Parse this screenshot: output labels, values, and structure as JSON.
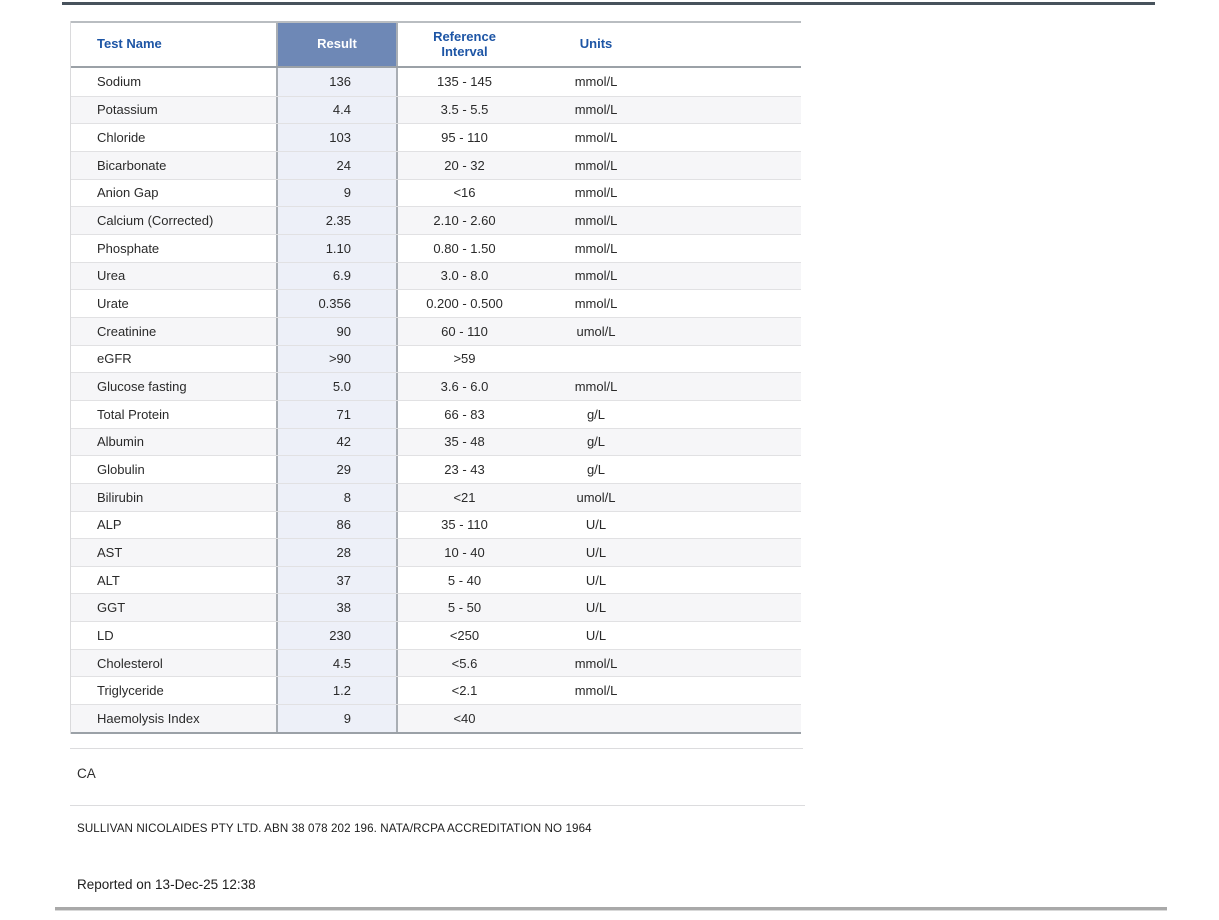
{
  "colors": {
    "header_text": "#1d55a5",
    "result_header_bg": "#6e88b6",
    "result_cell_bg": "#edf0f8",
    "row_stripe": "#f6f6f8",
    "top_rule": "#47525c",
    "bottom_rule": "#a9a9a9"
  },
  "table": {
    "headers": {
      "test_name": "Test Name",
      "result": "Result",
      "reference_interval": "Reference\nInterval",
      "units": "Units"
    },
    "rows": [
      {
        "name": "Sodium",
        "result": "136",
        "reference": "135 - 145",
        "units": "mmol/L"
      },
      {
        "name": "Potassium",
        "result": "4.4",
        "reference": "3.5 - 5.5",
        "units": "mmol/L"
      },
      {
        "name": "Chloride",
        "result": "103",
        "reference": "95 - 110",
        "units": "mmol/L"
      },
      {
        "name": "Bicarbonate",
        "result": "24",
        "reference": "20 - 32",
        "units": "mmol/L"
      },
      {
        "name": "Anion Gap",
        "result": "9",
        "reference": "<16",
        "units": "mmol/L"
      },
      {
        "name": "Calcium (Corrected)",
        "result": "2.35",
        "reference": "2.10 - 2.60",
        "units": "mmol/L"
      },
      {
        "name": "Phosphate",
        "result": "1.10",
        "reference": "0.80 - 1.50",
        "units": "mmol/L"
      },
      {
        "name": "Urea",
        "result": "6.9",
        "reference": "3.0 - 8.0",
        "units": "mmol/L"
      },
      {
        "name": "Urate",
        "result": "0.356",
        "reference": "0.200 - 0.500",
        "units": "mmol/L"
      },
      {
        "name": "Creatinine",
        "result": "90",
        "reference": "60 - 110",
        "units": "umol/L"
      },
      {
        "name": "eGFR",
        "result": ">90",
        "reference": ">59",
        "units": ""
      },
      {
        "name": "Glucose fasting",
        "result": "5.0",
        "reference": "3.6 - 6.0",
        "units": "mmol/L"
      },
      {
        "name": "Total Protein",
        "result": "71",
        "reference": "66 - 83",
        "units": "g/L"
      },
      {
        "name": "Albumin",
        "result": "42",
        "reference": "35 - 48",
        "units": "g/L"
      },
      {
        "name": "Globulin",
        "result": "29",
        "reference": "23 - 43",
        "units": "g/L"
      },
      {
        "name": "Bilirubin",
        "result": "8",
        "reference": "<21",
        "units": "umol/L"
      },
      {
        "name": "ALP",
        "result": "86",
        "reference": "35 - 110",
        "units": "U/L"
      },
      {
        "name": "AST",
        "result": "28",
        "reference": "10 - 40",
        "units": "U/L"
      },
      {
        "name": "ALT",
        "result": "37",
        "reference": "5 - 40",
        "units": "U/L"
      },
      {
        "name": "GGT",
        "result": "38",
        "reference": "5 - 50",
        "units": "U/L"
      },
      {
        "name": "LD",
        "result": "230",
        "reference": "<250",
        "units": "U/L"
      },
      {
        "name": "Cholesterol",
        "result": "4.5",
        "reference": "<5.6",
        "units": "mmol/L"
      },
      {
        "name": "Triglyceride",
        "result": "1.2",
        "reference": "<2.1",
        "units": "mmol/L"
      },
      {
        "name": "Haemolysis Index",
        "result": "9",
        "reference": "<40",
        "units": ""
      }
    ]
  },
  "footer": {
    "note": "CA",
    "lab_accreditation": "SULLIVAN NICOLAIDES PTY LTD. ABN 38 078 202 196. NATA/RCPA ACCREDITATION NO 1964",
    "reported_on": "Reported on 13-Dec-25 12:38"
  }
}
